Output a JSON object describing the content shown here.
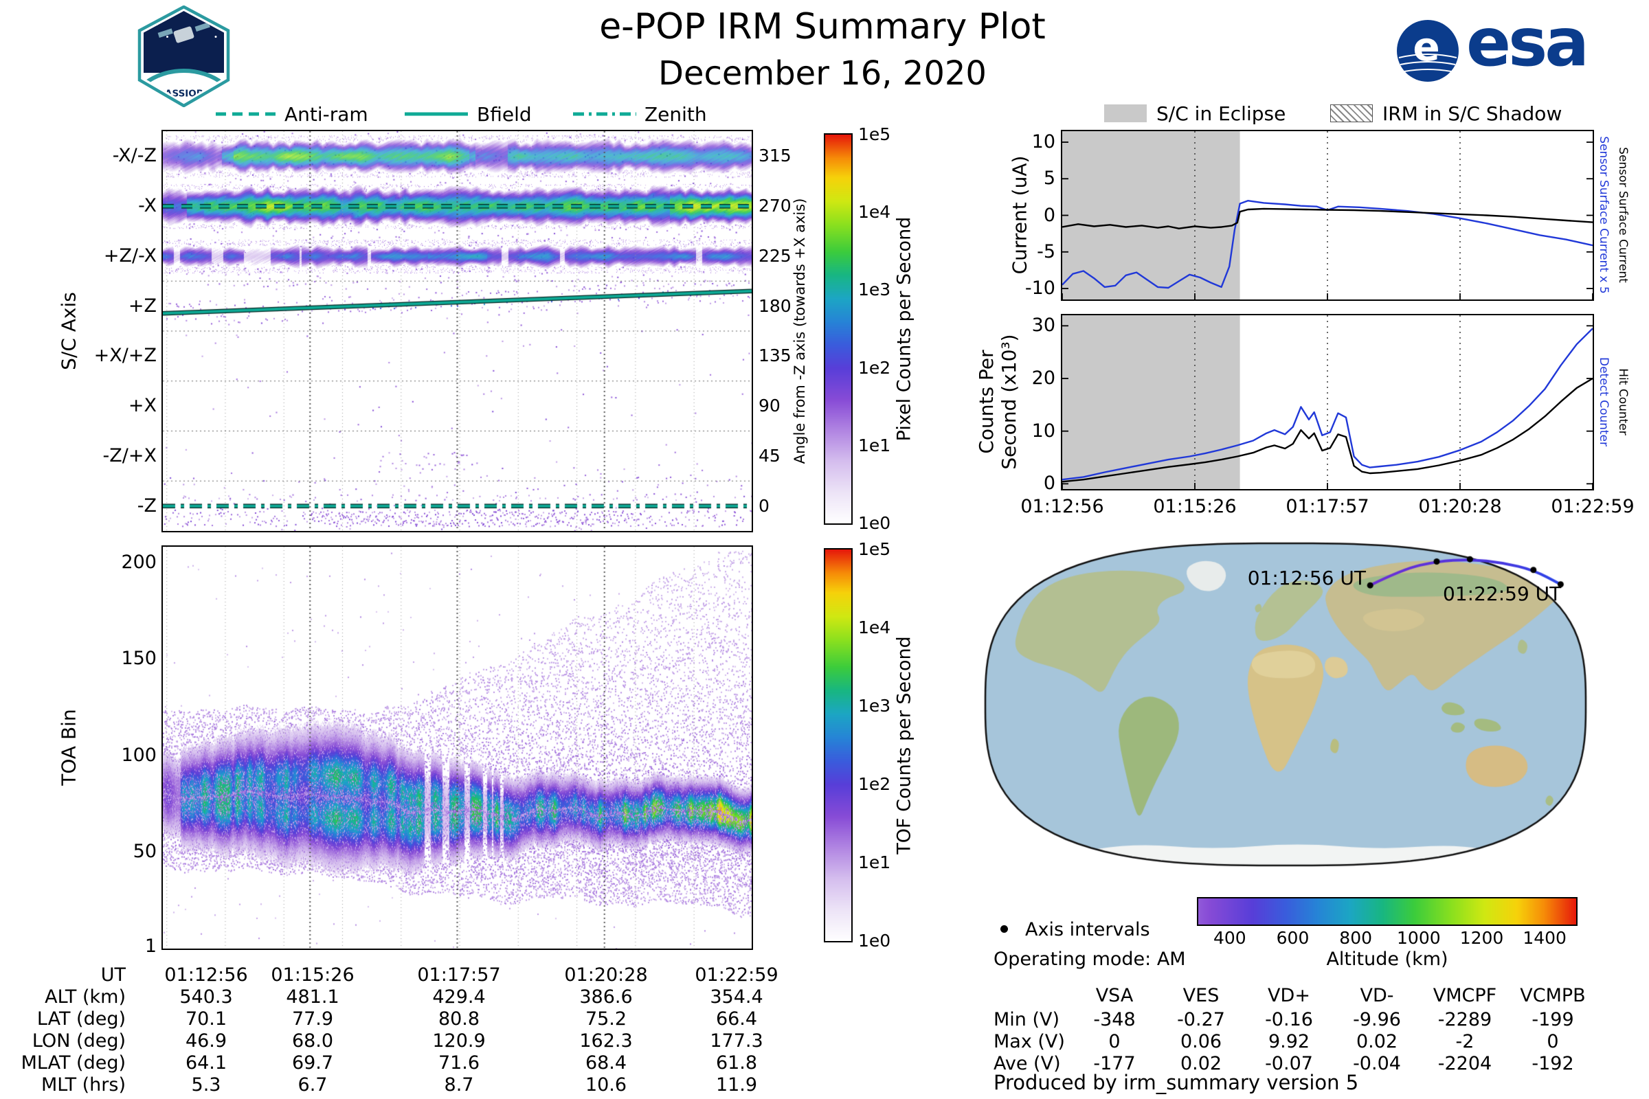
{
  "header": {
    "title": "e-POP IRM Summary Plot",
    "date": "December 16, 2020",
    "cassiope": "CASSIOPE",
    "esa": "esa",
    "esa_initial": "e"
  },
  "colors": {
    "teal": "#0faa96",
    "blue": "#2038d8",
    "black": "#000000",
    "eclipse_gray": "#c9c9c9",
    "esa_blue": "#0b3c8c",
    "orbit_purple": "#6a2fd8"
  },
  "legend_left": {
    "antiram": "Anti-ram",
    "bfield": "Bfield",
    "zenith": "Zenith"
  },
  "legend_right": {
    "eclipse": "S/C in Eclipse",
    "shadow": "IRM in S/C Shadow"
  },
  "spec_axis": {
    "ylabel": "S/C Axis",
    "yticks": [
      "-X/-Z",
      "-X",
      "+Z/-X",
      "+Z",
      "+X/+Z",
      "+X",
      "-Z/+X",
      "-Z"
    ],
    "right_label": "Angle from -Z axis (towards +X axis)",
    "right_ticks": [
      "315",
      "270",
      "225",
      "180",
      "135",
      "90",
      "45",
      "0"
    ],
    "cbar_label": "Pixel Counts per Second",
    "cbar_ticks": [
      "1e5",
      "1e4",
      "1e3",
      "1e2",
      "1e1",
      "1e0"
    ]
  },
  "spec_toa": {
    "ylabel": "TOA Bin",
    "yticks": [
      "200",
      "150",
      "100",
      "50",
      "1"
    ],
    "cbar_label": "TOF Counts per Second",
    "cbar_ticks": [
      "1e5",
      "1e4",
      "1e3",
      "1e2",
      "1e1",
      "1e0"
    ]
  },
  "xticks": [
    "01:12:56",
    "01:15:26",
    "01:17:57",
    "01:20:28",
    "01:22:59"
  ],
  "current_plot": {
    "ylabel": "Current (uA)",
    "yticks": [
      "10",
      "5",
      "0",
      "-5",
      "-10"
    ],
    "right_label_blue": "Sensor Surface Current x 5",
    "right_label_black": "Sensor Surface Current"
  },
  "counts_plot": {
    "ylabel_line1": "Counts Per",
    "ylabel_line2": "Second (x10³)",
    "yticks": [
      "30",
      "20",
      "10",
      "0"
    ],
    "right_label_blue": "Detect Counter",
    "right_label_black": "Hit Counter"
  },
  "ephemeris": {
    "rows": [
      {
        "label": "UT",
        "values": [
          "01:12:56",
          "01:15:26",
          "01:17:57",
          "01:20:28",
          "01:22:59"
        ]
      },
      {
        "label": "ALT (km)",
        "values": [
          "540.3",
          "481.1",
          "429.4",
          "386.6",
          "354.4"
        ]
      },
      {
        "label": "LAT (deg)",
        "values": [
          "70.1",
          "77.9",
          "80.8",
          "75.2",
          "66.4"
        ]
      },
      {
        "label": "LON (deg)",
        "values": [
          "46.9",
          "68.0",
          "120.9",
          "162.3",
          "177.3"
        ]
      },
      {
        "label": "MLAT (deg)",
        "values": [
          "64.1",
          "69.7",
          "71.6",
          "68.4",
          "61.8"
        ]
      },
      {
        "label": "MLT (hrs)",
        "values": [
          "5.3",
          "6.7",
          "8.7",
          "10.6",
          "11.9"
        ]
      }
    ]
  },
  "map": {
    "start_label": "01:12:56 UT",
    "end_label": "01:22:59 UT",
    "axis_intervals": "Axis intervals",
    "operating_mode": "Operating mode: AM",
    "alt_label": "Altitude (km)",
    "alt_ticks": [
      "400",
      "600",
      "800",
      "1000",
      "1200",
      "1400"
    ]
  },
  "voltage_table": {
    "cols": [
      "VSA",
      "VES",
      "VD+",
      "VD-",
      "VMCPF",
      "VCMPB"
    ],
    "rows": [
      {
        "label": "Min (V)",
        "values": [
          "-348",
          "-0.27",
          "-0.16",
          "-9.96",
          "-2289",
          "-199"
        ]
      },
      {
        "label": "Max (V)",
        "values": [
          "0",
          "0.06",
          "9.92",
          "0.02",
          "-2",
          "0"
        ]
      },
      {
        "label": "Ave (V)",
        "values": [
          "-177",
          "0.02",
          "-0.07",
          "-0.04",
          "-2204",
          "-192"
        ]
      }
    ]
  },
  "footer": {
    "produced_by": "Produced by irm_summary version 5"
  },
  "chart_data": [
    {
      "id": "sc_axis_spectrogram",
      "type": "heatmap",
      "ylabel": "S/C Axis",
      "y_categories": [
        "-X/-Z",
        "-X",
        "+Z/-X",
        "+Z",
        "+X/+Z",
        "+X",
        "-Z/+X",
        "-Z"
      ],
      "right_axis": {
        "label": "Angle from -Z axis (towards +X axis)",
        "ticks": [
          315,
          270,
          225,
          180,
          135,
          90,
          45,
          0
        ]
      },
      "colorbar": {
        "label": "Pixel Counts per Second",
        "scale": "log10",
        "range": [
          1,
          100000
        ]
      },
      "x_range": [
        "01:12:56",
        "01:22:59"
      ],
      "bands": [
        {
          "axis": "-X/-Z",
          "angle_deg": 315,
          "level": "~1e2-1e3, green core with purple fringe"
        },
        {
          "axis": "-X",
          "angle_deg": 270,
          "level": "~1e3-1e4, brightest band, yellow at end"
        },
        {
          "axis": "+Z/-X",
          "angle_deg": 225,
          "level": "~1e1-1e2, patchy purple/green"
        },
        {
          "axis": "-Z",
          "angle_deg": 0,
          "level": "sparse ~1e1 purple below zenith line"
        }
      ],
      "overlays": [
        {
          "name": "Anti-ram",
          "style": "dashed",
          "angle_deg": 270
        },
        {
          "name": "Bfield",
          "style": "solid",
          "angle_start_deg": 173.5,
          "angle_end_deg": 193.5
        },
        {
          "name": "Zenith",
          "style": "dashdot",
          "angle_deg": 0
        }
      ]
    },
    {
      "id": "toa_spectrogram",
      "type": "heatmap",
      "ylabel": "TOA Bin",
      "ylim": [
        1,
        210
      ],
      "colorbar": {
        "label": "TOF Counts per Second",
        "scale": "log10",
        "range": [
          1,
          100000
        ]
      },
      "core_band": {
        "center_bin_start": 80,
        "center_bin_end": 67,
        "peak_level": "~1e3-1e4, narrows and brightens to yellow-green at end"
      },
      "cloud": "purple speckle ~1e1 from bin ~20 up to ~200, widest on right half"
    },
    {
      "id": "current",
      "type": "line",
      "ylabel": "Current (uA)",
      "ylim": [
        -11.5,
        11.5
      ],
      "x_ticks": [
        "01:12:56",
        "01:15:26",
        "01:17:57",
        "01:20:28",
        "01:22:59"
      ],
      "x_range_seconds": 603,
      "eclipse_end_frac": 0.335,
      "series": [
        {
          "name": "Sensor Surface Current x 5",
          "color": "#2038d8",
          "x_frac": [
            0,
            0.02,
            0.04,
            0.06,
            0.08,
            0.1,
            0.12,
            0.14,
            0.16,
            0.18,
            0.2,
            0.22,
            0.24,
            0.26,
            0.28,
            0.3,
            0.315,
            0.325,
            0.335,
            0.35,
            0.38,
            0.42,
            0.45,
            0.48,
            0.5,
            0.52,
            0.56,
            0.6,
            0.65,
            0.7,
            0.75,
            0.8,
            0.85,
            0.9,
            0.95,
            1.0
          ],
          "values": [
            -9.5,
            -8.0,
            -7.6,
            -8.6,
            -9.8,
            -9.6,
            -8.2,
            -7.8,
            -8.8,
            -9.8,
            -9.9,
            -9.0,
            -8.1,
            -8.5,
            -9.2,
            -9.8,
            -7.0,
            -2.0,
            1.6,
            2.0,
            1.7,
            1.5,
            1.3,
            1.2,
            0.7,
            1.2,
            1.1,
            0.9,
            0.6,
            0.2,
            -0.4,
            -1.1,
            -1.9,
            -2.7,
            -3.3,
            -4.1
          ]
        },
        {
          "name": "Sensor Surface Current",
          "color": "#000000",
          "x_frac": [
            0,
            0.03,
            0.06,
            0.09,
            0.12,
            0.15,
            0.18,
            0.2,
            0.22,
            0.25,
            0.28,
            0.3,
            0.32,
            0.33,
            0.335,
            0.35,
            0.38,
            0.42,
            0.46,
            0.5,
            0.55,
            0.6,
            0.65,
            0.7,
            0.75,
            0.8,
            0.85,
            0.9,
            0.95,
            1.0
          ],
          "values": [
            -1.6,
            -1.2,
            -1.5,
            -1.3,
            -1.6,
            -1.4,
            -1.7,
            -1.5,
            -1.8,
            -1.5,
            -1.7,
            -1.6,
            -1.4,
            -1.0,
            0.5,
            0.8,
            0.9,
            0.85,
            0.8,
            0.75,
            0.7,
            0.6,
            0.45,
            0.3,
            0.15,
            0.0,
            -0.2,
            -0.45,
            -0.7,
            -0.95
          ]
        }
      ]
    },
    {
      "id": "counts",
      "type": "line",
      "ylabel": "Counts Per Second (x10³)",
      "ylim": [
        -1,
        32
      ],
      "eclipse_end_frac": 0.335,
      "series": [
        {
          "name": "Detect Counter",
          "color": "#2038d8",
          "x_frac": [
            0,
            0.04,
            0.08,
            0.12,
            0.16,
            0.2,
            0.24,
            0.27,
            0.3,
            0.33,
            0.36,
            0.385,
            0.4,
            0.42,
            0.435,
            0.45,
            0.465,
            0.475,
            0.49,
            0.505,
            0.52,
            0.535,
            0.55,
            0.565,
            0.58,
            0.6,
            0.63,
            0.67,
            0.71,
            0.75,
            0.79,
            0.82,
            0.85,
            0.88,
            0.91,
            0.94,
            0.97,
            1.0
          ],
          "values": [
            0.8,
            1.3,
            2.2,
            3.0,
            3.8,
            4.6,
            5.2,
            5.8,
            6.5,
            7.3,
            8.2,
            9.6,
            10.2,
            9.4,
            10.8,
            14.6,
            12.2,
            13.6,
            9.2,
            9.8,
            13.4,
            12.6,
            5.2,
            3.6,
            3.1,
            3.3,
            3.6,
            4.2,
            5.1,
            6.4,
            8.0,
            9.8,
            12.0,
            14.8,
            18.0,
            22.5,
            26.5,
            29.5
          ]
        },
        {
          "name": "Hit Counter",
          "color": "#000000",
          "x_frac": [
            0,
            0.04,
            0.08,
            0.12,
            0.16,
            0.2,
            0.24,
            0.27,
            0.3,
            0.33,
            0.36,
            0.385,
            0.4,
            0.42,
            0.435,
            0.45,
            0.465,
            0.475,
            0.49,
            0.505,
            0.52,
            0.535,
            0.55,
            0.565,
            0.58,
            0.6,
            0.63,
            0.67,
            0.71,
            0.75,
            0.79,
            0.82,
            0.85,
            0.88,
            0.91,
            0.94,
            0.97,
            1.0
          ],
          "values": [
            0.4,
            0.8,
            1.4,
            2.0,
            2.6,
            3.2,
            3.7,
            4.1,
            4.6,
            5.2,
            5.9,
            6.9,
            7.3,
            6.7,
            7.6,
            10.2,
            8.6,
            9.6,
            6.3,
            6.8,
            9.4,
            8.9,
            3.4,
            2.3,
            2.0,
            2.1,
            2.4,
            2.8,
            3.5,
            4.4,
            5.5,
            6.8,
            8.4,
            10.4,
            12.8,
            15.6,
            18.2,
            20.0
          ]
        }
      ]
    },
    {
      "id": "ground_track",
      "type": "map",
      "start": "01:12:56 UT",
      "end": "01:22:59 UT",
      "track": [
        [
          0.64,
          0.135
        ],
        [
          0.695,
          0.085
        ],
        [
          0.75,
          0.062
        ],
        [
          0.805,
          0.055
        ],
        [
          0.86,
          0.066
        ],
        [
          0.91,
          0.088
        ],
        [
          0.955,
          0.132
        ]
      ],
      "dot_indices": [
        0,
        2,
        3,
        5,
        6
      ]
    },
    {
      "id": "altitude_bar",
      "type": "colorbar",
      "label": "Altitude (km)",
      "range": [
        300,
        1500
      ],
      "ticks": [
        400,
        600,
        800,
        1000,
        1200,
        1400
      ]
    }
  ]
}
